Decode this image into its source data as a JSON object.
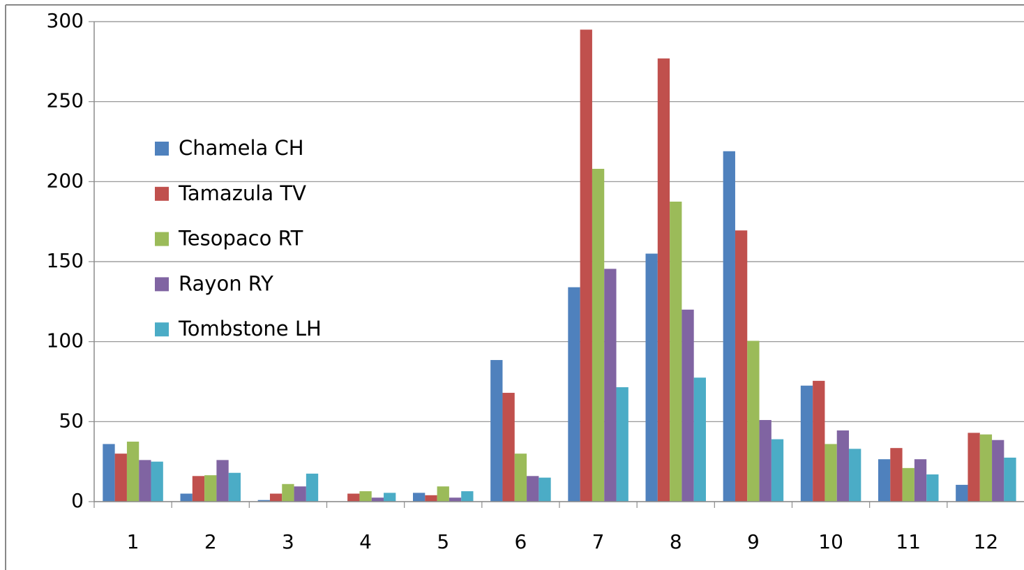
{
  "chart_data": {
    "type": "bar",
    "categories": [
      "1",
      "2",
      "3",
      "4",
      "5",
      "6",
      "7",
      "8",
      "9",
      "10",
      "11",
      "12"
    ],
    "series": [
      {
        "name": "Chamela CH",
        "color": "#4f81bd",
        "values": [
          36,
          5,
          1,
          0,
          5.5,
          88.5,
          134,
          155,
          219,
          72.5,
          26.5,
          10.5
        ]
      },
      {
        "name": "Tamazula TV",
        "color": "#c0504d",
        "values": [
          30,
          16,
          5,
          5,
          4,
          68,
          295,
          277,
          169.5,
          75.5,
          33.5,
          43
        ]
      },
      {
        "name": "Tesopaco RT",
        "color": "#9bbb59",
        "values": [
          37.5,
          16.5,
          11,
          6.5,
          9.5,
          30,
          208,
          187.5,
          100.5,
          36,
          21,
          42
        ]
      },
      {
        "name": "Rayon RY",
        "color": "#8064a2",
        "values": [
          26,
          26,
          9.5,
          2.5,
          2.5,
          16,
          145.5,
          120,
          51,
          44.5,
          26.5,
          38.5
        ]
      },
      {
        "name": "Tombstone LH",
        "color": "#4bacc6",
        "values": [
          25,
          18,
          17.5,
          5.5,
          6.5,
          15,
          71.5,
          77.5,
          39,
          33,
          17,
          27.5
        ]
      }
    ],
    "ylim": [
      0,
      300
    ],
    "yticks": [
      0,
      50,
      100,
      150,
      200,
      250,
      300
    ],
    "grid": true
  }
}
